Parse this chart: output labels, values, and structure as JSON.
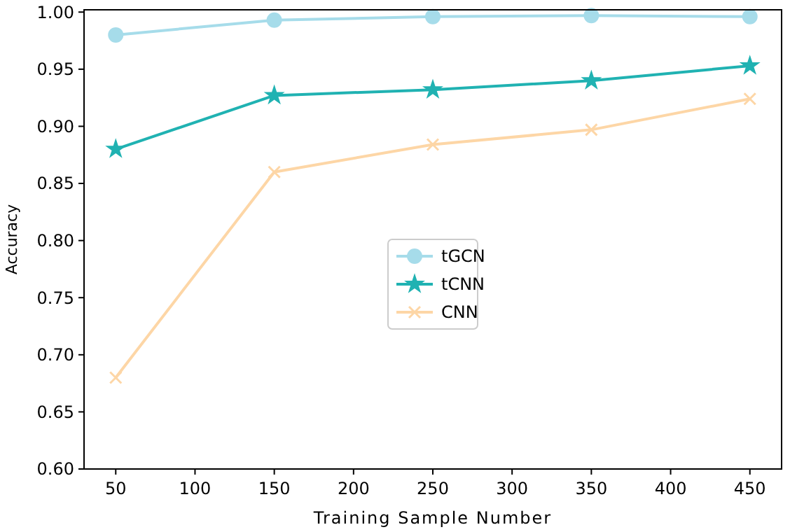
{
  "chart_data": {
    "type": "line",
    "xlabel": "Training Sample Number",
    "ylabel": "Accuracy",
    "x": [
      50,
      150,
      250,
      350,
      450
    ],
    "series": [
      {
        "name": "tGCN",
        "color": "#a6dcea",
        "marker": "circle",
        "values": [
          0.98,
          0.993,
          0.996,
          0.997,
          0.996
        ]
      },
      {
        "name": "tCNN",
        "color": "#20b2b2",
        "marker": "star",
        "values": [
          0.88,
          0.927,
          0.932,
          0.94,
          0.953
        ]
      },
      {
        "name": "CNN",
        "color": "#fdd6a6",
        "marker": "cross",
        "values": [
          0.68,
          0.86,
          0.884,
          0.897,
          0.924
        ]
      }
    ],
    "xlim": [
      30,
      470
    ],
    "xticks": [
      50,
      100,
      150,
      200,
      250,
      300,
      350,
      400,
      450
    ],
    "ylim": [
      0.6,
      1.002
    ],
    "yticks": [
      {
        "value": 0.6,
        "label": "0.60"
      },
      {
        "value": 0.65,
        "label": "0.65"
      },
      {
        "value": 0.7,
        "label": "0.70"
      },
      {
        "value": 0.75,
        "label": "0.75"
      },
      {
        "value": 0.8,
        "label": "0.80"
      },
      {
        "value": 0.85,
        "label": "0.85"
      },
      {
        "value": 0.9,
        "label": "0.90"
      },
      {
        "value": 0.95,
        "label": "0.95"
      },
      {
        "value": 1.0,
        "label": "1.00"
      }
    ],
    "grid": false,
    "legend": "center"
  }
}
